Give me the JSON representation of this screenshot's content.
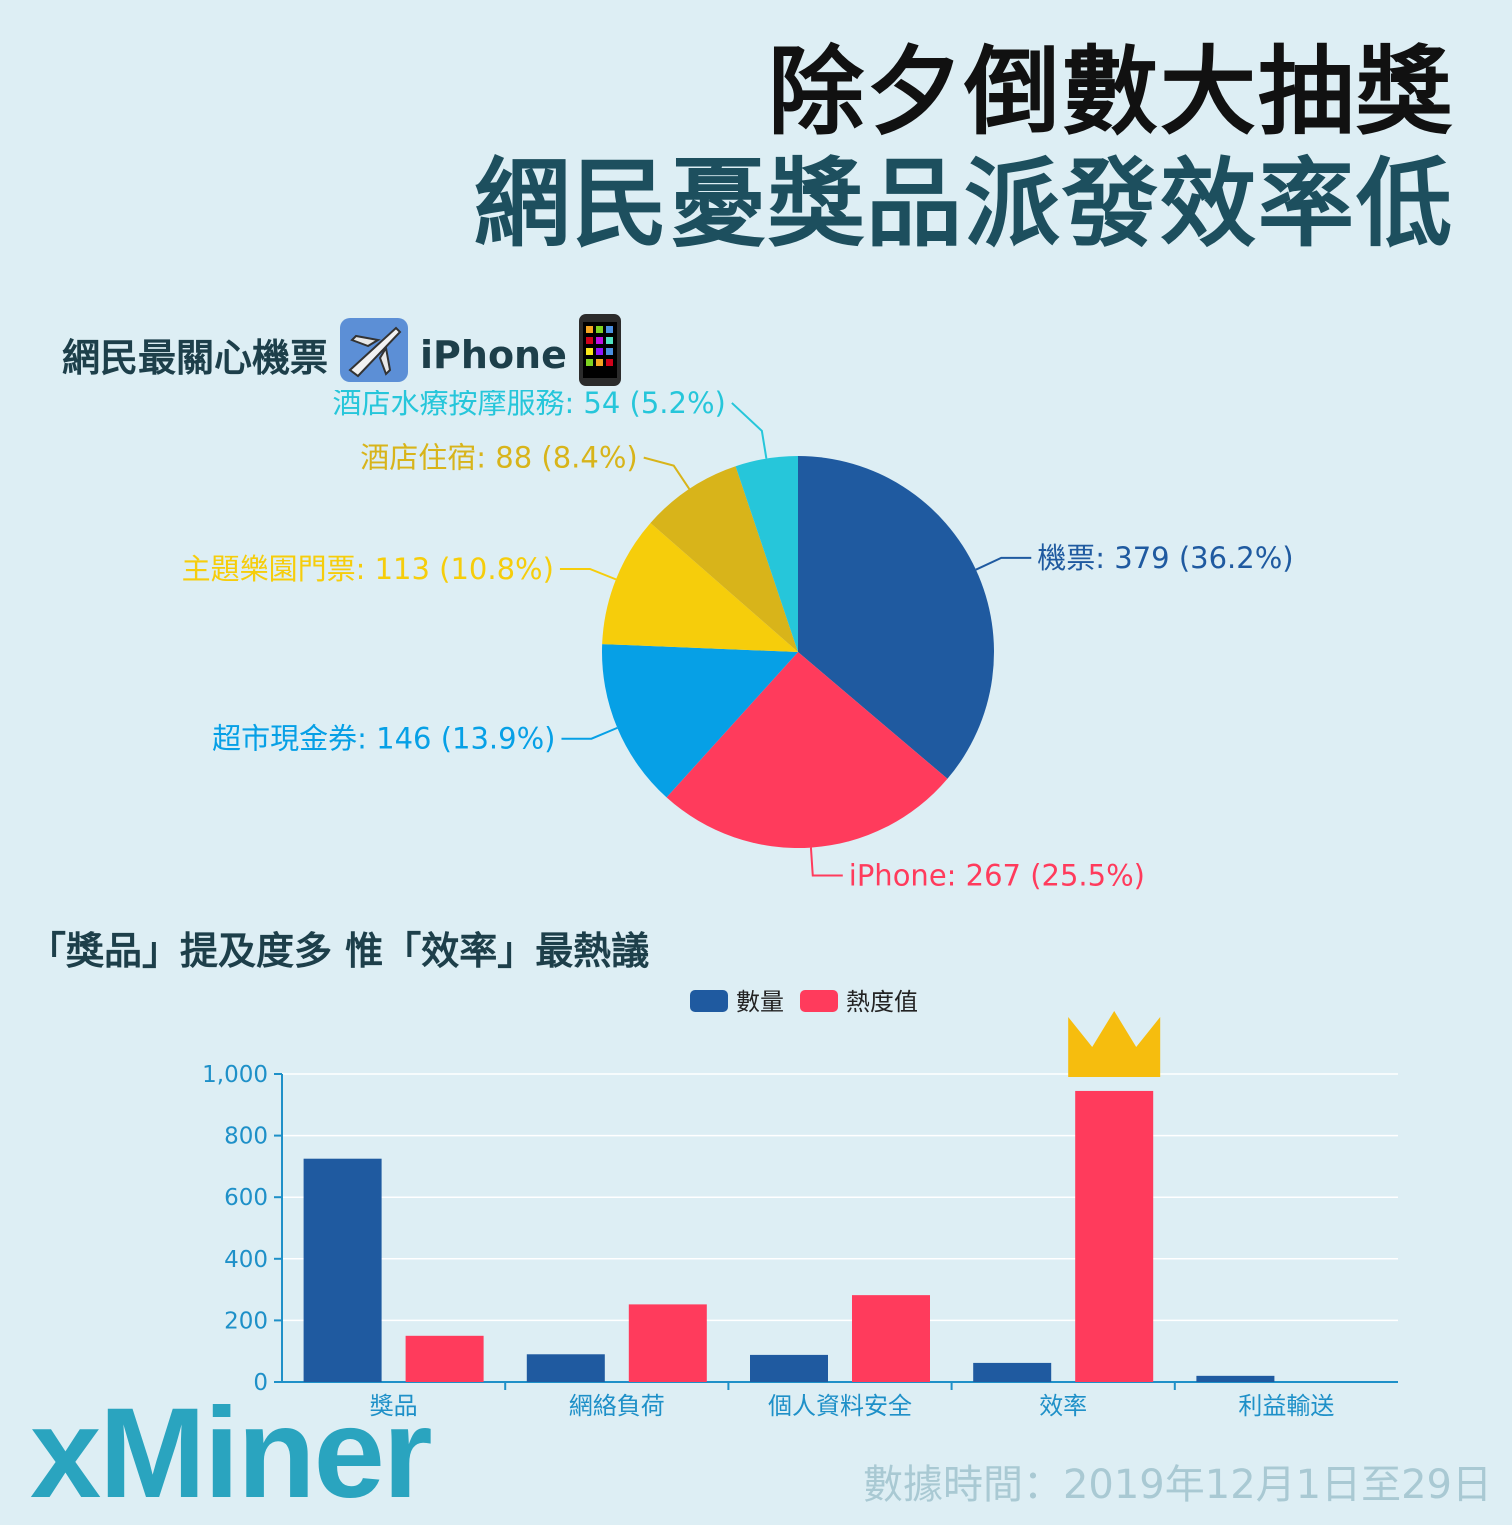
{
  "header": {
    "title_line1": "除夕倒數大抽獎",
    "title_line2": "網民憂獎品派發效率低"
  },
  "section1": {
    "label_prefix": "網民最關心機票",
    "label_suffix": "iPhone",
    "icons": [
      "airplane-icon",
      "mobile-phone-icon"
    ]
  },
  "section2": {
    "label": "「獎品」提及度多 惟「效率」最熱議"
  },
  "colors": {
    "blue": "#1f5aa0",
    "red": "#ff3b5c",
    "sky": "#06a0e6",
    "yellow": "#f6cd0b",
    "gold": "#d8b41a",
    "cyan": "#26c6da",
    "crown": "#f6bd0e",
    "axis": "#1e90c8"
  },
  "chart_data": [
    {
      "type": "pie",
      "slices": [
        {
          "label": "機票",
          "value": 379,
          "percent": "36.2%",
          "color": "#1f5aa0"
        },
        {
          "label": "iPhone",
          "value": 267,
          "percent": "25.5%",
          "color": "#ff3b5c"
        },
        {
          "label": "超市現金券",
          "value": 146,
          "percent": "13.9%",
          "color": "#06a0e6"
        },
        {
          "label": "主題樂園門票",
          "value": 113,
          "percent": "10.8%",
          "color": "#f6cd0b"
        },
        {
          "label": "酒店住宿",
          "value": 88,
          "percent": "8.4%",
          "color": "#d8b41a"
        },
        {
          "label": "酒店水療按摩服務",
          "value": 54,
          "percent": "5.2%",
          "color": "#26c6da"
        }
      ]
    },
    {
      "type": "bar",
      "categories": [
        "獎品",
        "網絡負荷",
        "個人資料安全",
        "效率",
        "利益輸送"
      ],
      "series": [
        {
          "name": "數量",
          "values": [
            725,
            90,
            88,
            62,
            20
          ],
          "color": "#1f5aa0"
        },
        {
          "name": "熱度值",
          "values": [
            150,
            252,
            282,
            945,
            0
          ],
          "color": "#ff3b5c"
        }
      ],
      "ylim": [
        0,
        1000
      ],
      "yticks": [
        "0",
        "200",
        "400",
        "600",
        "800",
        "1,000"
      ],
      "legend": "top-center",
      "highlight": {
        "category": "效率",
        "series": "熱度值",
        "marker": "crown-icon"
      },
      "grid": true
    }
  ],
  "footer": {
    "logo": "xMiner",
    "note": "數據時間：2019年12月1日至29日"
  }
}
